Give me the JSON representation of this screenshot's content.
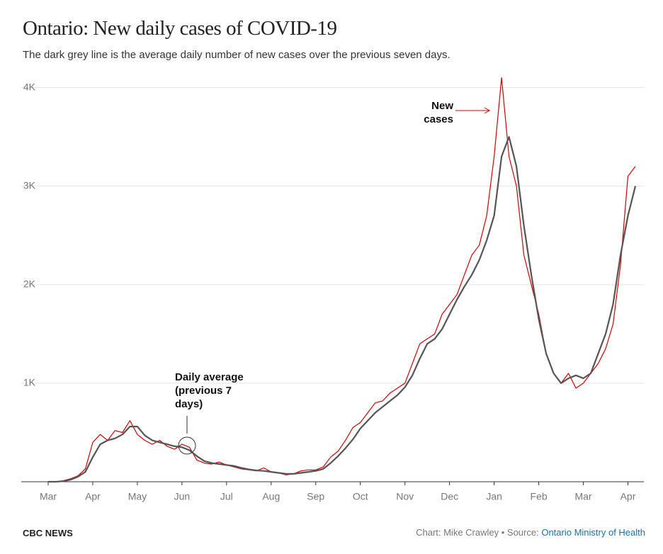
{
  "chart_data": {
    "type": "line",
    "title": "Ontario: New daily cases of COVID-19",
    "subtitle": "The dark grey line is the average daily number of new cases over the previous seven days.",
    "categories": [
      "Mar",
      null,
      null,
      null,
      null,
      null,
      "Apr",
      null,
      null,
      null,
      null,
      null,
      "May",
      null,
      null,
      null,
      null,
      null,
      "Jun",
      null,
      null,
      null,
      null,
      null,
      "Jul",
      null,
      null,
      null,
      null,
      null,
      "Aug",
      null,
      null,
      null,
      null,
      null,
      "Sep",
      null,
      null,
      null,
      null,
      null,
      "Oct",
      null,
      null,
      null,
      null,
      null,
      "Nov",
      null,
      null,
      null,
      null,
      null,
      "Dec",
      null,
      null,
      null,
      null,
      null,
      "Jan",
      null,
      null,
      null,
      null,
      null,
      "Feb",
      null,
      null,
      null,
      null,
      null,
      "Mar",
      null,
      null,
      null,
      null,
      null,
      "Apr",
      null
    ],
    "series": [
      {
        "name": "New cases",
        "color": "#d40000",
        "values": [
          0,
          0,
          10,
          30,
          60,
          130,
          400,
          480,
          420,
          520,
          500,
          620,
          480,
          420,
          380,
          420,
          360,
          330,
          380,
          350,
          220,
          190,
          180,
          200,
          170,
          150,
          130,
          120,
          110,
          140,
          100,
          90,
          70,
          80,
          110,
          120,
          120,
          150,
          250,
          310,
          420,
          550,
          600,
          700,
          800,
          820,
          900,
          950,
          1000,
          1200,
          1400,
          1450,
          1500,
          1700,
          1800,
          1900,
          2100,
          2300,
          2400,
          2700,
          3300,
          4100,
          3300,
          3000,
          2300,
          2000,
          1700,
          1300,
          1100,
          1000,
          1100,
          950,
          1000,
          1100,
          1200,
          1350,
          1600,
          2200,
          3100,
          3200
        ]
      },
      {
        "name": "Daily average (previous 7 days)",
        "color": "#555555",
        "values": [
          0,
          0,
          5,
          20,
          50,
          100,
          250,
          380,
          420,
          440,
          480,
          560,
          560,
          470,
          420,
          400,
          380,
          360,
          350,
          320,
          260,
          210,
          190,
          180,
          170,
          160,
          140,
          125,
          115,
          110,
          100,
          90,
          80,
          80,
          90,
          100,
          110,
          130,
          190,
          260,
          340,
          430,
          540,
          620,
          700,
          760,
          820,
          880,
          960,
          1080,
          1250,
          1400,
          1450,
          1550,
          1700,
          1850,
          1980,
          2100,
          2250,
          2450,
          2700,
          3300,
          3500,
          3200,
          2600,
          2100,
          1650,
          1300,
          1100,
          1000,
          1050,
          1080,
          1050,
          1100,
          1300,
          1500,
          1800,
          2300,
          2700,
          3000
        ]
      }
    ],
    "ylim": [
      0,
      4170
    ],
    "yticks": [
      {
        "value": 1000,
        "label": "1K"
      },
      {
        "value": 2000,
        "label": "2K"
      },
      {
        "value": 3000,
        "label": "3K"
      },
      {
        "value": 4000,
        "label": "4K"
      }
    ],
    "grid": true,
    "brand": "CBC NEWS",
    "source_prefix": "Chart: Mike Crawley • Source:",
    "source_link": "Ontario Ministry of Health"
  }
}
